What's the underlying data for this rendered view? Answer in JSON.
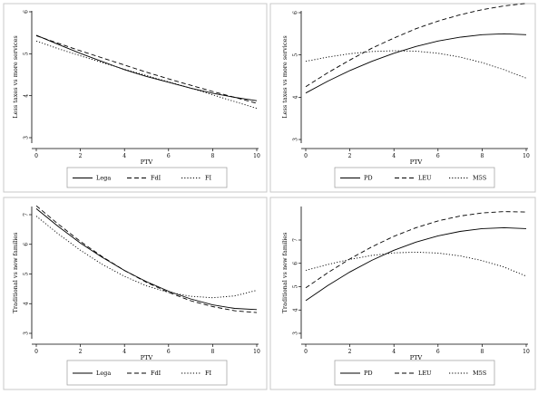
{
  "chart_data": [
    {
      "type": "line",
      "xlabel": "PTV",
      "ylabel": "Less taxes vs more services",
      "xlim": [
        0,
        10
      ],
      "ylim": [
        3,
        6
      ],
      "xticks": [
        "0",
        "2",
        "4",
        "6",
        "8",
        "10"
      ],
      "yticks": [
        "3",
        "4",
        "5",
        "6"
      ],
      "legend_position": "bottom",
      "series": [
        {
          "name": "Lega",
          "style": "solid",
          "x": [
            0,
            1,
            2,
            3,
            4,
            5,
            6,
            7,
            8,
            9,
            10
          ],
          "values": [
            5.44,
            5.22,
            5.01,
            4.81,
            4.62,
            4.46,
            4.32,
            4.18,
            4.06,
            3.96,
            3.88
          ]
        },
        {
          "name": "FdI",
          "style": "dashed",
          "x": [
            0,
            1,
            2,
            3,
            4,
            5,
            6,
            7,
            8,
            9,
            10
          ],
          "values": [
            5.43,
            5.25,
            5.07,
            4.9,
            4.73,
            4.56,
            4.4,
            4.25,
            4.1,
            3.96,
            3.82
          ]
        },
        {
          "name": "FI",
          "style": "dotted",
          "x": [
            0,
            1,
            2,
            3,
            4,
            5,
            6,
            7,
            8,
            9,
            10
          ],
          "values": [
            5.3,
            5.12,
            4.95,
            4.79,
            4.63,
            4.48,
            4.33,
            4.18,
            4.02,
            3.86,
            3.7
          ]
        }
      ]
    },
    {
      "type": "line",
      "xlabel": "PTV",
      "ylabel": "Less taxes vs more services",
      "xlim": [
        0,
        10
      ],
      "ylim": [
        3,
        6
      ],
      "xticks": [
        "0",
        "2",
        "4",
        "6",
        "8",
        "10"
      ],
      "yticks": [
        "3",
        "4",
        "5",
        "6"
      ],
      "legend_position": "bottom",
      "series": [
        {
          "name": "PD",
          "style": "solid",
          "x": [
            0,
            1,
            2,
            3,
            4,
            5,
            6,
            7,
            8,
            9,
            10
          ],
          "values": [
            4.1,
            4.38,
            4.63,
            4.85,
            5.04,
            5.2,
            5.33,
            5.42,
            5.48,
            5.5,
            5.48
          ]
        },
        {
          "name": "LEU",
          "style": "dashed",
          "x": [
            0,
            1,
            2,
            3,
            4,
            5,
            6,
            7,
            8,
            9,
            10
          ],
          "values": [
            4.25,
            4.58,
            4.88,
            5.16,
            5.4,
            5.62,
            5.8,
            5.95,
            6.07,
            6.16,
            6.22
          ]
        },
        {
          "name": "M5S",
          "style": "dotted",
          "x": [
            0,
            1,
            2,
            3,
            4,
            5,
            6,
            7,
            8,
            9,
            10
          ],
          "values": [
            4.85,
            4.95,
            5.03,
            5.08,
            5.1,
            5.09,
            5.04,
            4.95,
            4.82,
            4.65,
            4.45
          ]
        }
      ]
    },
    {
      "type": "line",
      "xlabel": "PTV",
      "ylabel": "Traditional vs new families",
      "xlim": [
        0,
        10
      ],
      "ylim": [
        3,
        7
      ],
      "xticks": [
        "0",
        "2",
        "4",
        "6",
        "8",
        "10"
      ],
      "yticks": [
        "3",
        "4",
        "5",
        "6",
        "7"
      ],
      "legend_position": "bottom",
      "series": [
        {
          "name": "Lega",
          "style": "solid",
          "x": [
            0,
            1,
            2,
            3,
            4,
            5,
            6,
            7,
            8,
            9,
            10
          ],
          "values": [
            7.2,
            6.6,
            6.04,
            5.56,
            5.12,
            4.74,
            4.42,
            4.16,
            3.96,
            3.84,
            3.8
          ]
        },
        {
          "name": "FdI",
          "style": "dashed",
          "x": [
            0,
            1,
            2,
            3,
            4,
            5,
            6,
            7,
            8,
            9,
            10
          ],
          "values": [
            7.3,
            6.68,
            6.1,
            5.58,
            5.12,
            4.72,
            4.38,
            4.1,
            3.9,
            3.76,
            3.7
          ]
        },
        {
          "name": "FI",
          "style": "dotted",
          "x": [
            0,
            1,
            2,
            3,
            4,
            5,
            6,
            7,
            8,
            9,
            10
          ],
          "values": [
            6.95,
            6.35,
            5.8,
            5.32,
            4.92,
            4.6,
            4.38,
            4.25,
            4.2,
            4.26,
            4.45
          ]
        }
      ]
    },
    {
      "type": "line",
      "xlabel": "PTV",
      "ylabel": "Traditional vs new families",
      "xlim": [
        0,
        10
      ],
      "ylim": [
        3,
        8
      ],
      "xticks": [
        "0",
        "2",
        "4",
        "6",
        "8",
        "10"
      ],
      "yticks": [
        "3",
        "4",
        "5",
        "6",
        "7"
      ],
      "legend_position": "bottom",
      "series": [
        {
          "name": "PD",
          "style": "solid",
          "x": [
            0,
            1,
            2,
            3,
            4,
            5,
            6,
            7,
            8,
            9,
            10
          ],
          "values": [
            4.4,
            5.05,
            5.63,
            6.13,
            6.56,
            6.91,
            7.18,
            7.37,
            7.49,
            7.53,
            7.49
          ]
        },
        {
          "name": "LEU",
          "style": "dashed",
          "x": [
            0,
            1,
            2,
            3,
            4,
            5,
            6,
            7,
            8,
            9,
            10
          ],
          "values": [
            4.95,
            5.6,
            6.19,
            6.71,
            7.16,
            7.53,
            7.82,
            8.03,
            8.16,
            8.22,
            8.2
          ]
        },
        {
          "name": "M5S",
          "style": "dotted",
          "x": [
            0,
            1,
            2,
            3,
            4,
            5,
            6,
            7,
            8,
            9,
            10
          ],
          "values": [
            5.7,
            5.95,
            6.17,
            6.34,
            6.45,
            6.48,
            6.44,
            6.32,
            6.12,
            5.84,
            5.45
          ]
        }
      ]
    }
  ]
}
